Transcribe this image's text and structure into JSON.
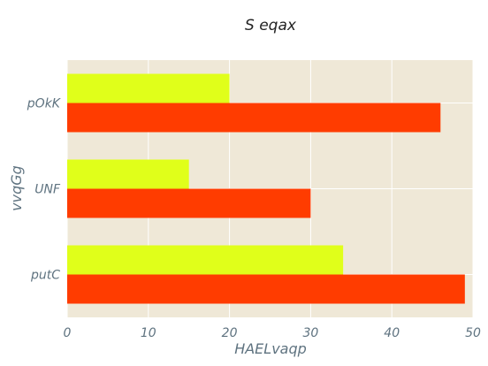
{
  "chart_data": {
    "type": "bar",
    "orientation": "horizontal",
    "title": "S eqax",
    "xlabel": "HAELvaqp",
    "ylabel": "vvqGg",
    "categories": [
      "putC",
      "UNF",
      "pOkK"
    ],
    "series": [
      {
        "values": [
          49,
          30,
          46
        ],
        "color": "#ff3c00"
      },
      {
        "values": [
          34,
          15,
          20
        ],
        "color": "#e0ff1a"
      }
    ],
    "xlim": [
      0,
      50
    ],
    "xticks": [
      0,
      10,
      20,
      30,
      40,
      50
    ],
    "grid": true,
    "background_color": "#efe8d7",
    "grid_color": "#ffffff"
  }
}
